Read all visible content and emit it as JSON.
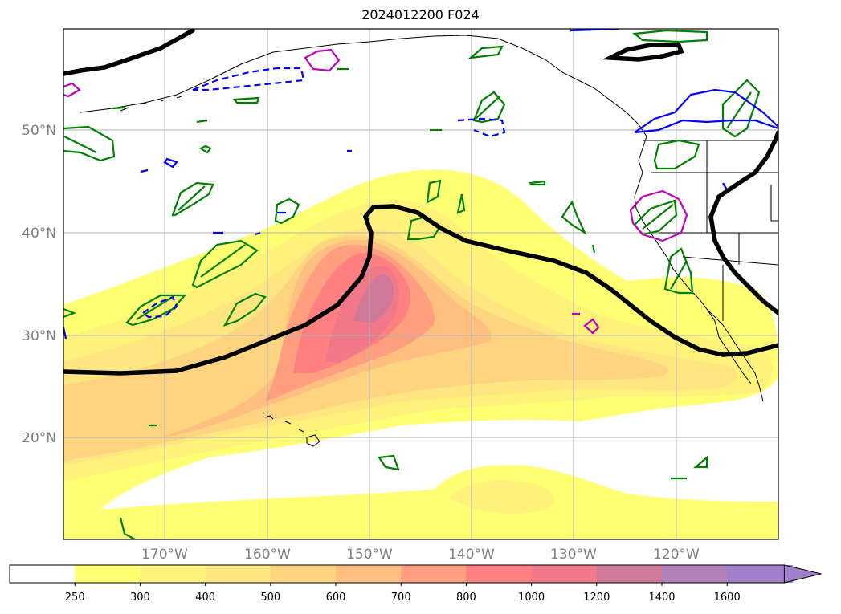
{
  "title": "2024012200 F024",
  "map": {
    "lat_labels": [
      "50°N",
      "40°N",
      "30°N",
      "20°N"
    ],
    "lon_labels": [
      "170°W",
      "160°W",
      "150°W",
      "140°W",
      "130°W",
      "120°W"
    ],
    "lat_range": [
      10,
      60
    ],
    "lon_range": [
      -180,
      -110
    ],
    "grid": true
  },
  "colorbar": {
    "levels": [
      "250",
      "300",
      "400",
      "500",
      "600",
      "700",
      "800",
      "1000",
      "1200",
      "1400",
      "1600"
    ],
    "colors": [
      "#ffffff",
      "#ffff73",
      "#fff27a",
      "#ffe680",
      "#ffd480",
      "#ffbf80",
      "#ff9f7f",
      "#ff8080",
      "#f07888",
      "#d07898",
      "#b080b8",
      "#a080c8"
    ],
    "extend": "max"
  },
  "legend_colors": {
    "thick_contour": "#000000",
    "green_contour": "#008000",
    "blue_contour": "#0000ff",
    "magenta_contour": "#bf00bf"
  }
}
